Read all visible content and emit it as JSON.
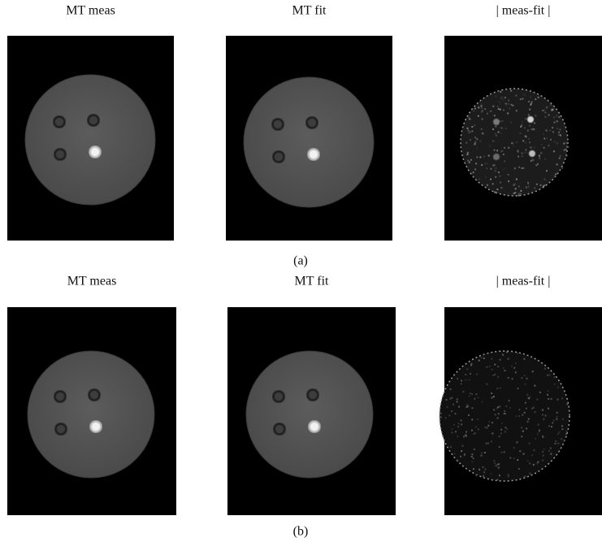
{
  "rows": [
    {
      "panels": [
        {
          "title": "MT meas"
        },
        {
          "title": "MT fit"
        },
        {
          "title": "| meas-fit |"
        }
      ],
      "caption": "(a)"
    },
    {
      "panels": [
        {
          "title": "MT meas"
        },
        {
          "title": "MT fit"
        },
        {
          "title": "| meas-fit |"
        }
      ],
      "caption": "(b)"
    }
  ]
}
